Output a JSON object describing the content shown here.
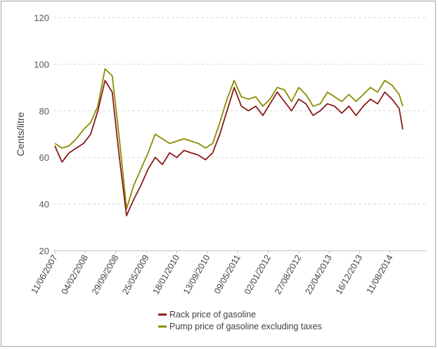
{
  "chart_data": {
    "type": "line",
    "title": "",
    "xlabel": "",
    "ylabel": "Cents/litre",
    "ylim": [
      20,
      120
    ],
    "yticks": [
      20,
      40,
      60,
      80,
      100,
      120
    ],
    "grid": true,
    "legend_position": "bottom",
    "x_tick_labels": [
      "11/06/2007",
      "04/02/2008",
      "29/09/2008",
      "25/05/2009",
      "18/01/2010",
      "13/09/2010",
      "09/05/2011",
      "02/01/2012",
      "27/08/2012",
      "22/04/2013",
      "16/12/2013",
      "11/08/2014"
    ],
    "x_tick_dates": [
      "2007-06-11",
      "2008-02-04",
      "2008-09-29",
      "2009-05-25",
      "2010-01-18",
      "2010-09-13",
      "2011-05-09",
      "2012-01-02",
      "2012-08-27",
      "2013-04-22",
      "2013-12-16",
      "2014-08-11"
    ],
    "x": [
      "2007-06-11",
      "2007-08-06",
      "2007-10-01",
      "2007-11-26",
      "2008-01-21",
      "2008-03-17",
      "2008-05-12",
      "2008-07-07",
      "2008-09-01",
      "2008-10-27",
      "2008-12-22",
      "2009-02-16",
      "2009-04-13",
      "2009-06-08",
      "2009-08-03",
      "2009-09-28",
      "2009-11-23",
      "2010-01-18",
      "2010-03-15",
      "2010-05-10",
      "2010-07-05",
      "2010-08-30",
      "2010-10-25",
      "2010-12-20",
      "2011-02-14",
      "2011-04-11",
      "2011-06-06",
      "2011-08-01",
      "2011-09-26",
      "2011-11-21",
      "2012-01-16",
      "2012-03-12",
      "2012-05-07",
      "2012-07-02",
      "2012-08-27",
      "2012-10-22",
      "2012-12-17",
      "2013-02-11",
      "2013-04-08",
      "2013-06-03",
      "2013-07-29",
      "2013-09-23",
      "2013-11-18",
      "2014-01-13",
      "2014-03-10",
      "2014-05-05",
      "2014-06-30",
      "2014-08-25",
      "2014-10-20",
      "2014-11-17"
    ],
    "series": [
      {
        "name": "Rack price of gasoline",
        "color": "#8b1a1a",
        "values": [
          65,
          58,
          62,
          64,
          66,
          70,
          80,
          93,
          88,
          60,
          35,
          42,
          48,
          55,
          60,
          57,
          62,
          60,
          63,
          62,
          61,
          59,
          62,
          70,
          80,
          90,
          82,
          80,
          82,
          78,
          83,
          88,
          84,
          80,
          85,
          83,
          78,
          80,
          83,
          82,
          79,
          82,
          78,
          82,
          85,
          83,
          88,
          85,
          81,
          72
        ]
      },
      {
        "name": "Pump price of gasoline excluding  taxes",
        "color": "#8c8c00",
        "values": [
          66,
          64,
          65,
          68,
          72,
          75,
          82,
          98,
          95,
          68,
          38,
          48,
          55,
          62,
          70,
          68,
          66,
          67,
          68,
          67,
          66,
          64,
          66,
          75,
          85,
          93,
          86,
          85,
          86,
          82,
          85,
          90,
          89,
          84,
          90,
          87,
          82,
          83,
          88,
          86,
          84,
          87,
          84,
          87,
          90,
          88,
          93,
          91,
          87,
          82
        ]
      }
    ]
  }
}
